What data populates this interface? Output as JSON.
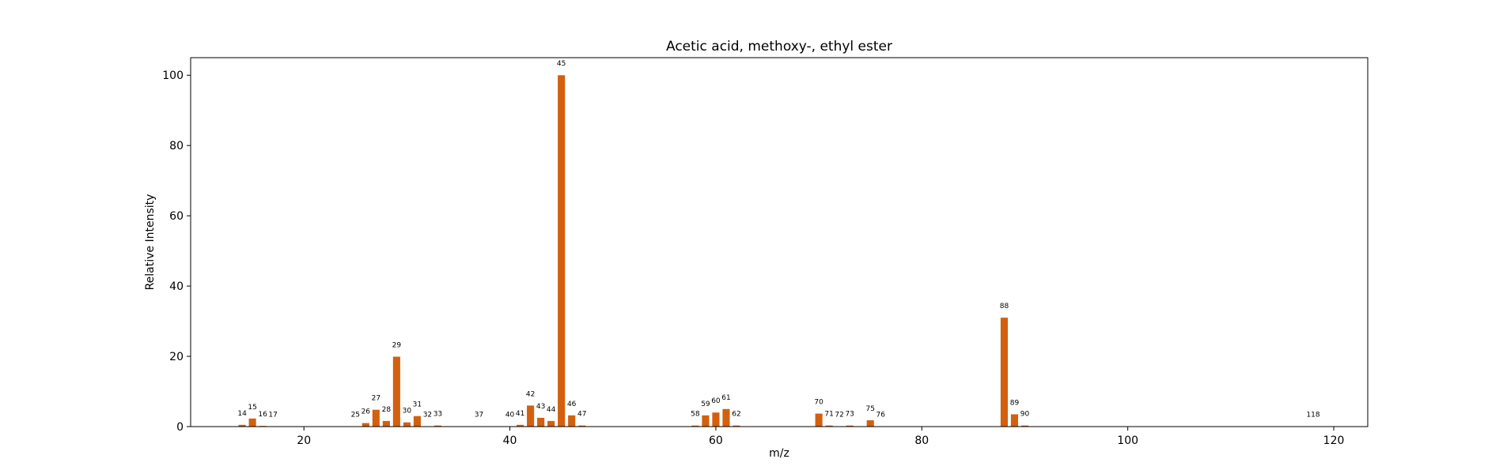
{
  "chart_data": {
    "type": "bar",
    "title": "Acetic acid, methoxy-, ethyl ester",
    "xlabel": "m/z",
    "ylabel": "Relative Intensity",
    "xlim": [
      9,
      123.3
    ],
    "ylim": [
      0,
      105
    ],
    "xticks": [
      20,
      40,
      60,
      80,
      100,
      120
    ],
    "yticks": [
      0,
      20,
      40,
      60,
      80,
      100
    ],
    "grid": false,
    "bar_color": "#d2600f",
    "peaks": [
      {
        "mz": 14,
        "intensity": 0.5,
        "label": "14"
      },
      {
        "mz": 15,
        "intensity": 2.3,
        "label": "15"
      },
      {
        "mz": 16,
        "intensity": 0.2,
        "label": "16"
      },
      {
        "mz": 17,
        "intensity": 0.1,
        "label": "17"
      },
      {
        "mz": 25,
        "intensity": 0.1,
        "label": "25"
      },
      {
        "mz": 26,
        "intensity": 1.0,
        "label": "26"
      },
      {
        "mz": 27,
        "intensity": 4.8,
        "label": "27"
      },
      {
        "mz": 28,
        "intensity": 1.6,
        "label": "28"
      },
      {
        "mz": 29,
        "intensity": 19.9,
        "label": "29"
      },
      {
        "mz": 30,
        "intensity": 1.2,
        "label": "30"
      },
      {
        "mz": 31,
        "intensity": 3.0,
        "label": "31"
      },
      {
        "mz": 32,
        "intensity": 0.1,
        "label": "32"
      },
      {
        "mz": 33,
        "intensity": 0.3,
        "label": "33"
      },
      {
        "mz": 37,
        "intensity": 0.1,
        "label": "37"
      },
      {
        "mz": 40,
        "intensity": 0.1,
        "label": "40"
      },
      {
        "mz": 41,
        "intensity": 0.5,
        "label": "41"
      },
      {
        "mz": 42,
        "intensity": 6.0,
        "label": "42"
      },
      {
        "mz": 43,
        "intensity": 2.5,
        "label": "43"
      },
      {
        "mz": 44,
        "intensity": 1.6,
        "label": "44"
      },
      {
        "mz": 45,
        "intensity": 100,
        "label": "45"
      },
      {
        "mz": 46,
        "intensity": 3.2,
        "label": "46"
      },
      {
        "mz": 47,
        "intensity": 0.3,
        "label": "47"
      },
      {
        "mz": 58,
        "intensity": 0.3,
        "label": "58"
      },
      {
        "mz": 59,
        "intensity": 3.2,
        "label": "59"
      },
      {
        "mz": 60,
        "intensity": 4.0,
        "label": "60"
      },
      {
        "mz": 61,
        "intensity": 5.0,
        "label": "61"
      },
      {
        "mz": 62,
        "intensity": 0.3,
        "label": "62"
      },
      {
        "mz": 70,
        "intensity": 3.7,
        "label": "70"
      },
      {
        "mz": 71,
        "intensity": 0.3,
        "label": "71"
      },
      {
        "mz": 72,
        "intensity": 0.1,
        "label": "72"
      },
      {
        "mz": 73,
        "intensity": 0.3,
        "label": "73"
      },
      {
        "mz": 75,
        "intensity": 1.8,
        "label": "75"
      },
      {
        "mz": 76,
        "intensity": 0.1,
        "label": "76"
      },
      {
        "mz": 88,
        "intensity": 31.0,
        "label": "88"
      },
      {
        "mz": 89,
        "intensity": 3.5,
        "label": "89"
      },
      {
        "mz": 90,
        "intensity": 0.3,
        "label": "90"
      },
      {
        "mz": 118,
        "intensity": 0.1,
        "label": "118"
      }
    ]
  }
}
